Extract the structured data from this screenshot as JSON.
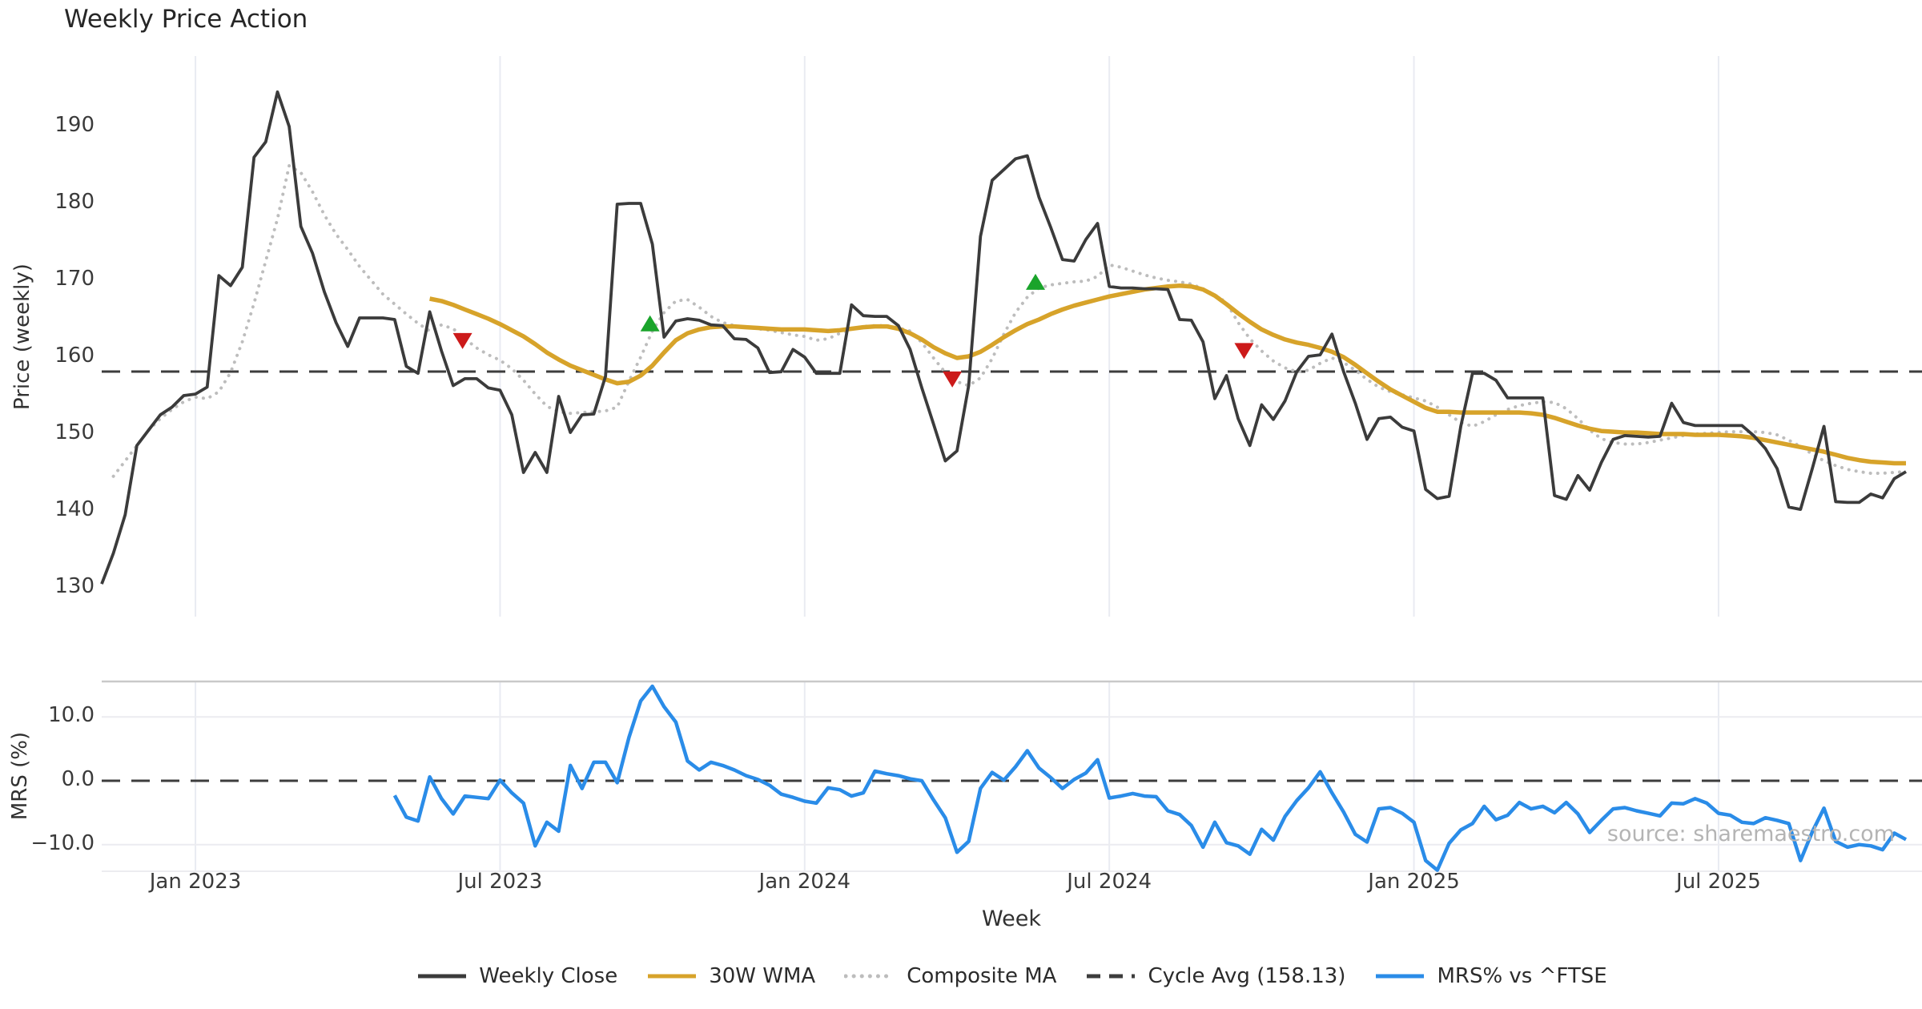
{
  "title": "Weekly Price Action",
  "source_text": "source: sharemaestro.com",
  "colors": {
    "weekly_close": "#3b3b3b",
    "wma_30w": "#d7a32a",
    "composite_ma": "#bdbdbd",
    "cycle_avg": "#3d3d3d",
    "mrs": "#2a8ce8",
    "buy_marker": "#1aa42b",
    "sell_marker": "#cc1a1a",
    "gridline": "#e9ebf2",
    "panel_border": "#c9c9c9",
    "faint_hgrid": "#ececf0"
  },
  "legend": [
    {
      "label": "Weekly Close",
      "style": "solid",
      "color": "#3b3b3b"
    },
    {
      "label": "30W WMA",
      "style": "solid",
      "color": "#d7a32a"
    },
    {
      "label": "Composite MA",
      "style": "dotted",
      "color": "#bdbdbd"
    },
    {
      "label": "Cycle Avg (158.13)",
      "style": "dashed",
      "color": "#3d3d3d"
    },
    {
      "label": "MRS% vs ^FTSE",
      "style": "solid",
      "color": "#2a8ce8"
    }
  ],
  "chart_data": {
    "type": "line",
    "title": "Weekly Price Action",
    "xlabel": "Week",
    "x_unit": "weekly",
    "x_ticks": [
      {
        "index": 8,
        "label": "Jan 2023"
      },
      {
        "index": 34,
        "label": "Jul 2023"
      },
      {
        "index": 60,
        "label": "Jan 2024"
      },
      {
        "index": 86,
        "label": "Jul 2024"
      },
      {
        "index": 112,
        "label": "Jan 2025"
      },
      {
        "index": 138,
        "label": "Jul 2025"
      }
    ],
    "panels": [
      {
        "ylabel": "Price (weekly)",
        "yticks": [
          130,
          140,
          150,
          160,
          170,
          180,
          190
        ],
        "ylim": [
          126.3,
          199.2
        ],
        "grid": "vertical-only"
      },
      {
        "ylabel": "MRS (%)",
        "yticks": [
          -10,
          0,
          10
        ],
        "ytick_labels": [
          "−10.0",
          "0.0",
          "10.0"
        ],
        "ylim": [
          -14.4,
          15.6
        ],
        "grid": "vertical-and-horizontal"
      }
    ],
    "cycle_avg": 158.13,
    "zero_line": 0,
    "series": [
      {
        "name": "Weekly Close",
        "panel": 0,
        "start_index": 0,
        "values": [
          130.5,
          134.5,
          139.5,
          148.5,
          150.5,
          152.5,
          153.5,
          155,
          155.2,
          156.1,
          170.6,
          169.3,
          171.7,
          186,
          188,
          194.5,
          190,
          177,
          173.5,
          168.5,
          164.5,
          161.4,
          165.1,
          165.1,
          165.1,
          164.9,
          158.8,
          157.9,
          165.9,
          160.8,
          156.3,
          157.2,
          157.2,
          156,
          155.7,
          152.5,
          145,
          147.6,
          145,
          154.9,
          150.2,
          152.5,
          152.6,
          157.5,
          179.9,
          180,
          180,
          174.7,
          162.6,
          164.7,
          165,
          164.8,
          164.2,
          164.1,
          162.4,
          162.3,
          161.2,
          158,
          158.1,
          161,
          160,
          157.9,
          157.9,
          157.9,
          166.8,
          165.4,
          165.3,
          165.3,
          164.1,
          161,
          156,
          151.3,
          146.5,
          147.8,
          156.3,
          175.7,
          183,
          184.4,
          185.8,
          186.2,
          180.8,
          176.9,
          172.7,
          172.5,
          175.3,
          177.4,
          169.2,
          169,
          169,
          168.9,
          168.9,
          168.8,
          164.9,
          164.8,
          162,
          154.6,
          157.6,
          152,
          148.5,
          153.8,
          151.9,
          154.3,
          158.1,
          160.1,
          160.3,
          163,
          158.1,
          154,
          149.3,
          152,
          152.2,
          150.9,
          150.4,
          142.8,
          141.6,
          141.9,
          151,
          157.9,
          157.9,
          157,
          154.7,
          154.7,
          154.7,
          154.7,
          142,
          141.5,
          144.6,
          142.7,
          146.3,
          149.3,
          149.8,
          149.7,
          149.6,
          149.7,
          154,
          151.5,
          151.1,
          151.1,
          151.1,
          151.1,
          151.1,
          149.8,
          148.1,
          145.5,
          140.5,
          140.2,
          145.5,
          151,
          141.2,
          141.1,
          141.1,
          142.2,
          141.7,
          144.2,
          145.1
        ]
      },
      {
        "name": "30W WMA",
        "panel": 0,
        "start_index": 28,
        "values": [
          167.6,
          167.3,
          166.8,
          166.2,
          165.6,
          165,
          164.3,
          163.5,
          162.7,
          161.7,
          160.6,
          159.7,
          158.9,
          158.3,
          157.7,
          157.1,
          156.6,
          156.8,
          157.6,
          158.9,
          160.6,
          162.2,
          163.1,
          163.6,
          163.9,
          164,
          164,
          163.9,
          163.8,
          163.7,
          163.6,
          163.6,
          163.6,
          163.5,
          163.4,
          163.5,
          163.7,
          163.9,
          164,
          164,
          163.7,
          163.1,
          162.3,
          161.3,
          160.5,
          159.9,
          160.1,
          160.7,
          161.6,
          162.6,
          163.5,
          164.3,
          164.9,
          165.6,
          166.2,
          166.7,
          167.1,
          167.5,
          167.9,
          168.2,
          168.5,
          168.8,
          169,
          169.2,
          169.3,
          169.2,
          168.8,
          168,
          166.9,
          165.7,
          164.6,
          163.6,
          162.9,
          162.3,
          161.9,
          161.6,
          161.2,
          160.7,
          160,
          159,
          157.9,
          156.8,
          155.8,
          155,
          154.2,
          153.4,
          152.9,
          152.9,
          152.8,
          152.8,
          152.8,
          152.8,
          152.8,
          152.8,
          152.7,
          152.5,
          152.1,
          151.6,
          151.1,
          150.7,
          150.4,
          150.3,
          150.2,
          150.2,
          150.1,
          150,
          150,
          150,
          149.9,
          149.9,
          149.9,
          149.8,
          149.7,
          149.5,
          149.2,
          148.9,
          148.6,
          148.3,
          148,
          147.7,
          147.3,
          146.9,
          146.6,
          146.4,
          146.3,
          146.2,
          146.2
        ]
      },
      {
        "name": "Composite MA",
        "panel": 0,
        "start_index": 1,
        "values": [
          144.5,
          146.5,
          148.5,
          150.5,
          152,
          153.2,
          154.2,
          154.8,
          154.6,
          155.5,
          158,
          162,
          167,
          172.5,
          178,
          184.9,
          184,
          181.5,
          178.5,
          176,
          174,
          171.8,
          170,
          168.2,
          166.9,
          165.6,
          164.4,
          163.4,
          164.2,
          163.7,
          162.4,
          161.2,
          160.3,
          159.6,
          158.5,
          157,
          155.2,
          153.6,
          152.9,
          152.7,
          152.8,
          152.9,
          153,
          153.5,
          156.9,
          160,
          163.4,
          165.8,
          167.3,
          167.5,
          166.5,
          165.3,
          164.5,
          164.1,
          163.9,
          163.7,
          163.5,
          163.2,
          162.9,
          162.7,
          162.2,
          162.4,
          163.1,
          163.7,
          164,
          164.1,
          164.1,
          163.8,
          163.4,
          161.9,
          159.9,
          158,
          156.8,
          156.3,
          157.3,
          159.8,
          163,
          165.8,
          167.8,
          169,
          169.4,
          169.6,
          169.8,
          169.9,
          170.5,
          172,
          171.7,
          171.2,
          170.7,
          170.3,
          170,
          169.8,
          169.5,
          168.9,
          168.1,
          167.1,
          164.5,
          162.4,
          160.8,
          159.5,
          158.6,
          158.1,
          158.3,
          159.2,
          159.9,
          159.3,
          158.3,
          157.1,
          156.1,
          155.5,
          155.1,
          154.7,
          154.3,
          153.5,
          152.5,
          151.5,
          151,
          151.6,
          152.5,
          153.2,
          153.7,
          154,
          154.2,
          154.1,
          153.3,
          152,
          150.5,
          149.4,
          148.9,
          148.7,
          148.7,
          148.9,
          149.2,
          149.5,
          149.8,
          150,
          150.1,
          150.2,
          150.3,
          150.3,
          150.3,
          150.2,
          149.9,
          149.2,
          148.4,
          147.4,
          146.5,
          145.9,
          145.4,
          145.1,
          144.9,
          144.9,
          145,
          145.1
        ]
      },
      {
        "name": "MRS% vs ^FTSE",
        "panel": 1,
        "start_index": 25,
        "values": [
          -2.3,
          -5.7,
          -6.3,
          0.6,
          -2.8,
          -5.2,
          -2.4,
          -2.6,
          -2.8,
          0.1,
          -1.9,
          -3.5,
          -10.2,
          -6.5,
          -7.9,
          2.4,
          -1.2,
          2.9,
          2.9,
          -0.3,
          6.8,
          12.5,
          14.8,
          11.6,
          9.2,
          3.1,
          1.7,
          2.9,
          2.4,
          1.7,
          0.8,
          0.2,
          -0.7,
          -2.1,
          -2.6,
          -3.2,
          -3.5,
          -1.1,
          -1.4,
          -2.4,
          -1.9,
          1.5,
          1.1,
          0.8,
          0.3,
          0,
          -3,
          -5.8,
          -11.2,
          -9.5,
          -1.2,
          1.3,
          0.1,
          2.2,
          4.7,
          2,
          0.5,
          -1.2,
          0.2,
          1.2,
          3.3,
          -2.7,
          -2.4,
          -2,
          -2.4,
          -2.5,
          -4.7,
          -5.3,
          -7,
          -10.4,
          -6.5,
          -9.7,
          -10.2,
          -11.5,
          -7.6,
          -9.3,
          -5.6,
          -3.1,
          -1.1,
          1.4,
          -1.9,
          -4.9,
          -8.4,
          -9.6,
          -4.4,
          -4.2,
          -5.1,
          -6.5,
          -12.5,
          -14,
          -9.8,
          -7.7,
          -6.7,
          -4,
          -6.1,
          -5.4,
          -3.4,
          -4.4,
          -4,
          -5,
          -3.4,
          -5.2,
          -8.1,
          -6.2,
          -4.4,
          -4.2,
          -4.7,
          -5.1,
          -5.5,
          -3.5,
          -3.6,
          -2.8,
          -3.5,
          -5.1,
          -5.4,
          -6.5,
          -6.7,
          -5.8,
          -6.2,
          -6.7,
          -12.5,
          -8,
          -4.3,
          -9.5,
          -10.4,
          -10,
          -10.2,
          -10.8,
          -8.2,
          -9.2
        ]
      },
      {
        "name": "signals",
        "panel": 0,
        "markers": [
          {
            "type": "sell",
            "index": 30.8,
            "value": 162.2
          },
          {
            "type": "buy",
            "index": 46.8,
            "value": 164.3
          },
          {
            "type": "sell",
            "index": 72.6,
            "value": 157.2
          },
          {
            "type": "buy",
            "index": 79.7,
            "value": 169.7
          },
          {
            "type": "sell",
            "index": 97.5,
            "value": 160.9
          }
        ]
      }
    ],
    "legend_position": "bottom-center",
    "legend_entries": [
      "Weekly Close",
      "30W WMA",
      "Composite MA",
      "Cycle Avg (158.13)",
      "MRS% vs ^FTSE"
    ]
  }
}
